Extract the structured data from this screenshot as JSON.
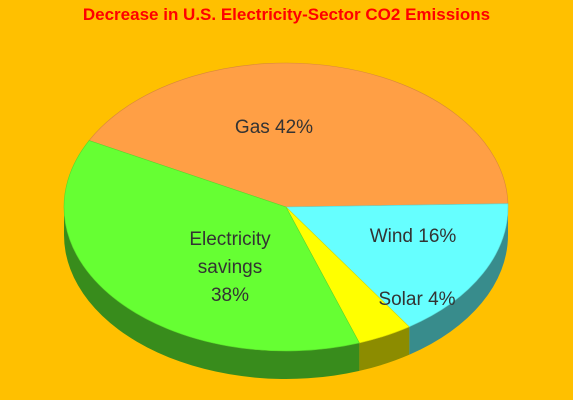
{
  "chart_data": {
    "type": "pie",
    "title": "Decrease in U.S. Electricity-Sector CO2 Emissions",
    "slices": [
      {
        "name": "Gas",
        "value": 42,
        "label": "Gas 42%",
        "color": "#FF9F45"
      },
      {
        "name": "Wind",
        "value": 16,
        "label": "Wind 16%",
        "color": "#66FFFF"
      },
      {
        "name": "Solar",
        "value": 4,
        "label": "Solar 4%",
        "color": "#FFFF00"
      },
      {
        "name": "Electricity savings",
        "value": 38,
        "label_lines": [
          "Electricity",
          "savings",
          "38%"
        ],
        "color": "#66FF33"
      }
    ],
    "legend": "none",
    "style": "3d"
  }
}
